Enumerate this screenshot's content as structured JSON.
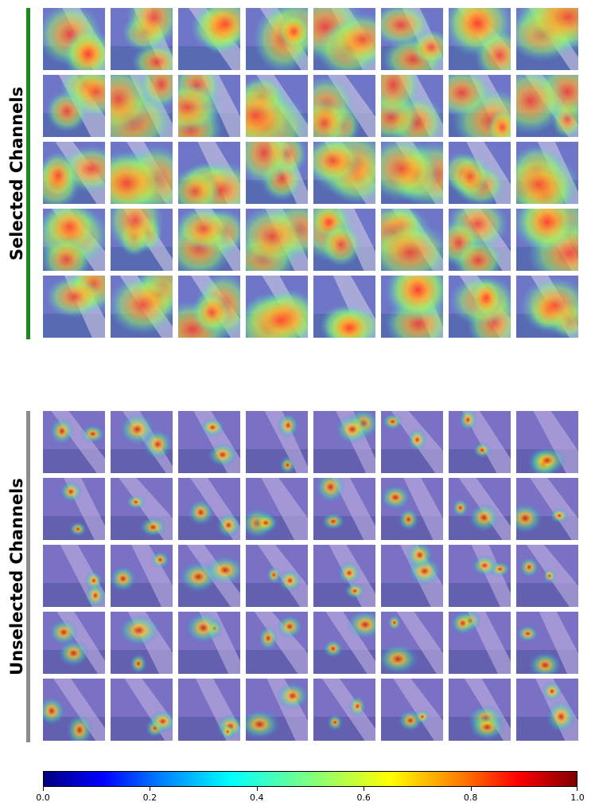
{
  "sections": [
    {
      "label": "Selected Channels",
      "bar_color": "#1a8a1a",
      "tone": "selected",
      "rows": 5,
      "cols": 8
    },
    {
      "label": "Unselected Channels",
      "bar_color": "#8c8c8c",
      "tone": "unselected",
      "rows": 5,
      "cols": 8
    }
  ],
  "colorbar": {
    "colormap": "jet",
    "range": [
      0.0,
      1.0
    ],
    "ticks": [
      "0.0",
      "0.2",
      "0.4",
      "0.6",
      "0.8",
      "1.0"
    ]
  }
}
